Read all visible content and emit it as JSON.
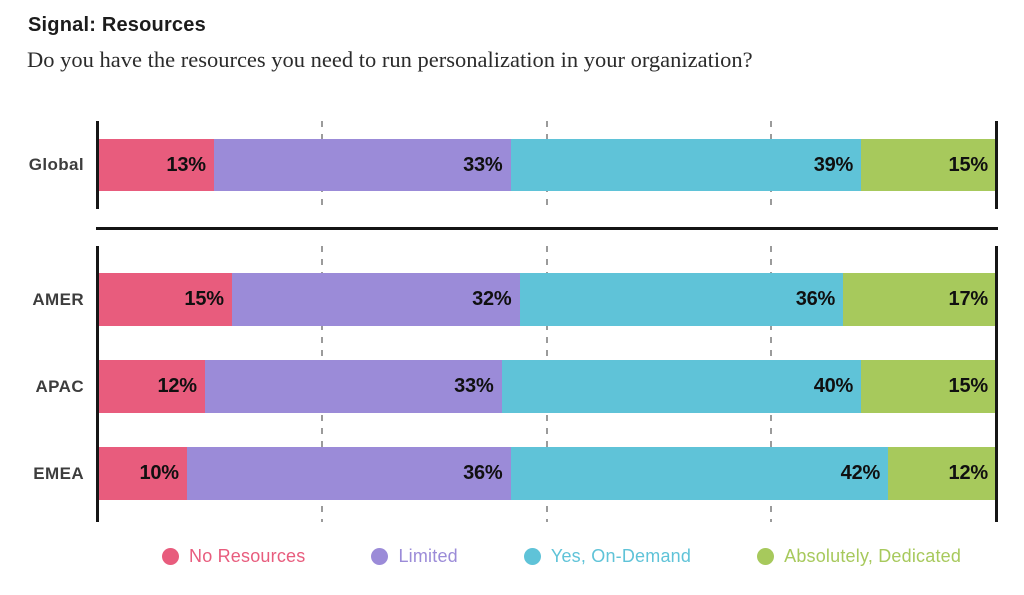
{
  "header": {
    "title": "Signal: Resources",
    "subtitle": "Do you have the resources you need to run personalization in your organization?"
  },
  "chart_data": {
    "type": "bar",
    "orientation": "horizontal",
    "stacked": true,
    "value_unit": "%",
    "xlim": [
      0,
      100
    ],
    "gridlines": [
      25,
      50,
      75
    ],
    "grid_style": "dashed-vertical",
    "legend_position": "bottom",
    "series": [
      {
        "name": "No Resources",
        "color": "#E85C7D"
      },
      {
        "name": "Limited",
        "color": "#9B8BD8"
      },
      {
        "name": "Yes, On-Demand",
        "color": "#5FC3D8"
      },
      {
        "name": "Absolutely, Dedicated",
        "color": "#A7C95C"
      }
    ],
    "groups": [
      {
        "id": "global",
        "rows": [
          {
            "category": "Global",
            "values": [
              13,
              33,
              39,
              15
            ]
          }
        ]
      },
      {
        "id": "regions",
        "rows": [
          {
            "category": "AMER",
            "values": [
              15,
              32,
              36,
              17
            ]
          },
          {
            "category": "APAC",
            "values": [
              12,
              33,
              40,
              15
            ]
          },
          {
            "category": "EMEA",
            "values": [
              10,
              36,
              42,
              12
            ]
          }
        ]
      }
    ]
  }
}
